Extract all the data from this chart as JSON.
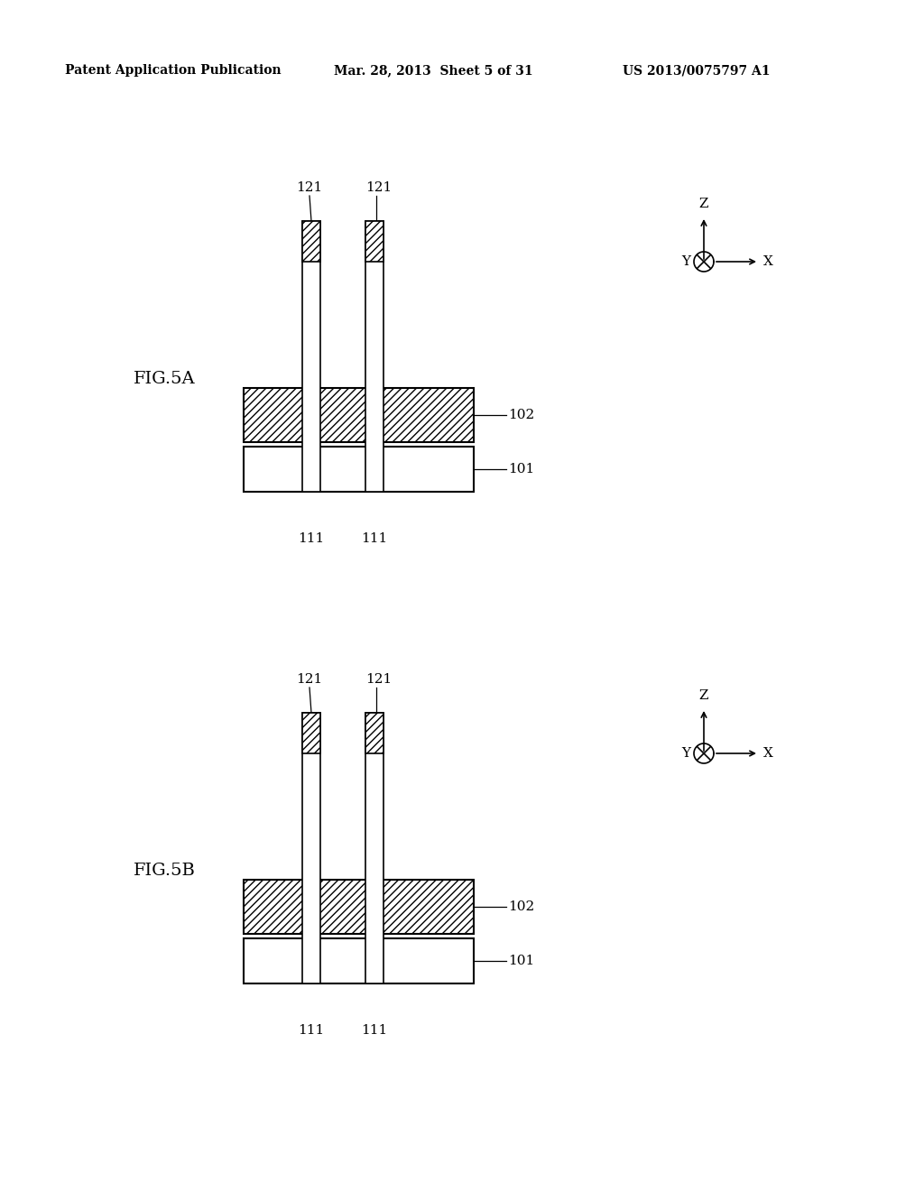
{
  "bg_color": "#ffffff",
  "header_left": "Patent Application Publication",
  "header_mid": "Mar. 28, 2013  Sheet 5 of 31",
  "header_right": "US 2013/0075797 A1",
  "fig5a_label": "FIG.5A",
  "fig5b_label": "FIG.5B",
  "label_101": "101",
  "label_102": "102",
  "label_111": "111",
  "label_121": "121"
}
